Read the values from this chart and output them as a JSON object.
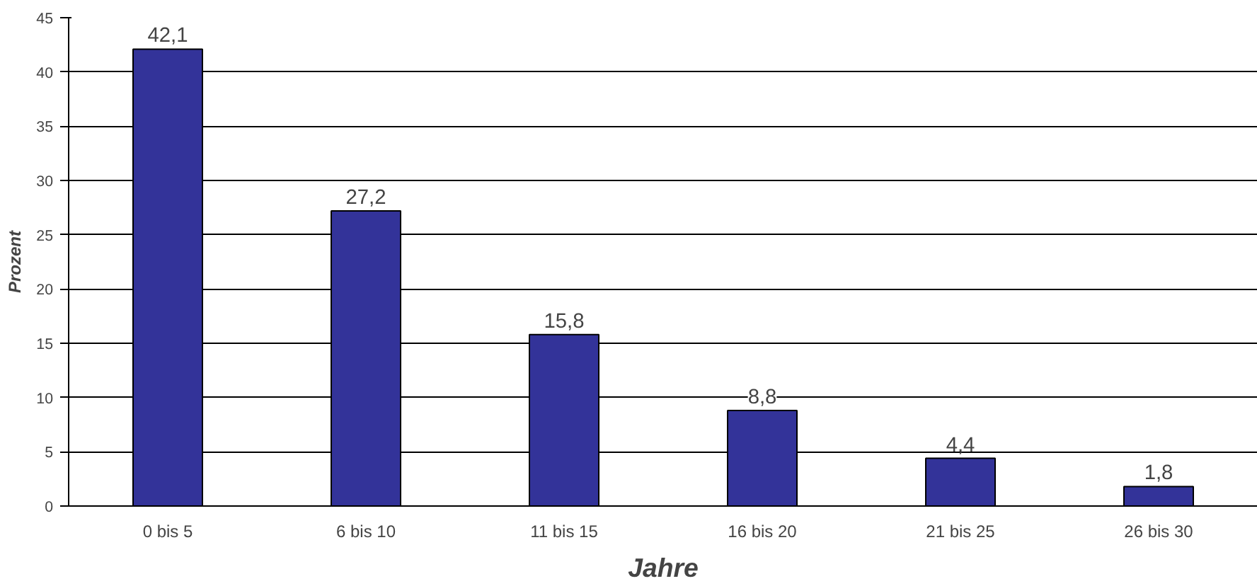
{
  "chart_data": {
    "type": "bar",
    "xlabel": "Jahre",
    "ylabel": "Prozent",
    "categories": [
      "0 bis 5",
      "6 bis 10",
      "11 bis 15",
      "16 bis 20",
      "21 bis 25",
      "26 bis 30"
    ],
    "values": [
      42.1,
      27.2,
      15.8,
      8.8,
      4.4,
      1.8
    ],
    "value_labels": [
      "42,1",
      "27,2",
      "15,8",
      "8,8",
      "4,4",
      "1,8"
    ],
    "color": "#333399",
    "ylim": [
      0,
      45
    ],
    "yticks": [
      0,
      5,
      10,
      15,
      20,
      25,
      30,
      35,
      40,
      45
    ],
    "grid": "y"
  }
}
